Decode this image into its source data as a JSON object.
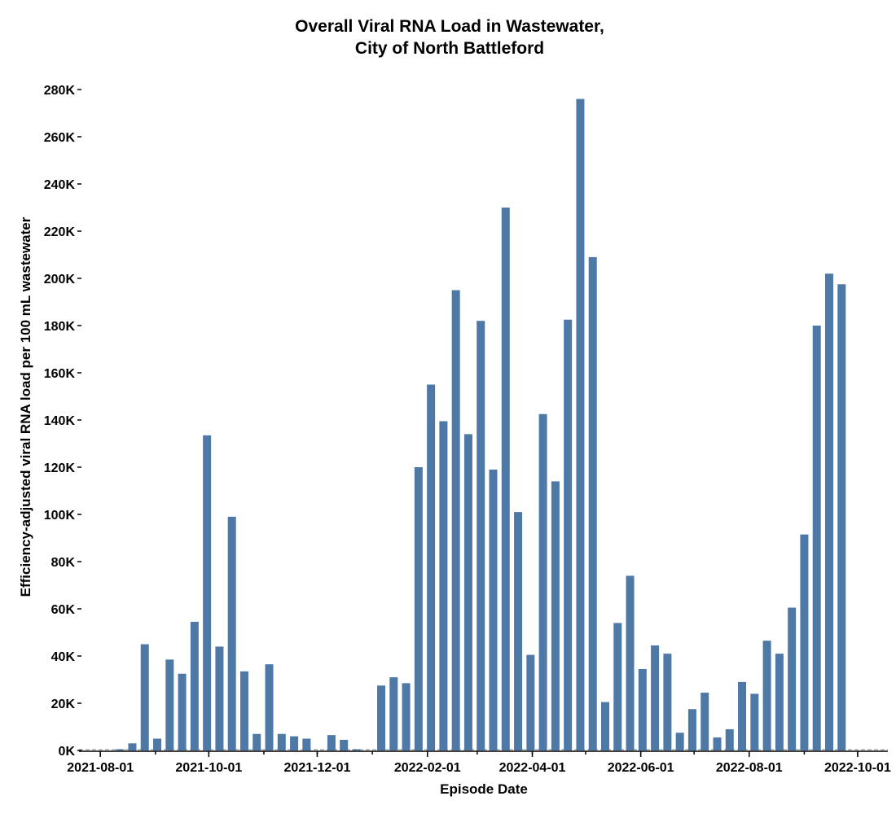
{
  "chart_data": {
    "type": "bar",
    "title": [
      "Overall Viral RNA Load in Wastewater,",
      "City of North Battleford"
    ],
    "xlabel": "Episode Date",
    "ylabel": "Efficiency-adjusted viral RNA load per 100 mL wastewater",
    "ylim": [
      0,
      280000
    ],
    "xlim": [
      "2021-07-20",
      "2022-10-18"
    ],
    "y_ticks": [
      0,
      20000,
      40000,
      60000,
      80000,
      100000,
      120000,
      140000,
      160000,
      180000,
      200000,
      220000,
      240000,
      260000,
      280000
    ],
    "y_tick_labels": [
      "0K",
      "20K",
      "40K",
      "60K",
      "80K",
      "100K",
      "120K",
      "140K",
      "160K",
      "180K",
      "200K",
      "220K",
      "240K",
      "260K",
      "280K"
    ],
    "x_ticks": [
      "2021-08-01",
      "2021-10-01",
      "2021-12-01",
      "2022-02-01",
      "2022-04-01",
      "2022-06-01",
      "2022-08-01",
      "2022-10-01"
    ],
    "bar_color": "#4e79a7",
    "grid": false,
    "zero_line": "dashed",
    "points": [
      [
        "2021-08-12",
        500
      ],
      [
        "2021-08-19",
        3000
      ],
      [
        "2021-08-26",
        45000
      ],
      [
        "2021-09-02",
        5000
      ],
      [
        "2021-09-09",
        38500
      ],
      [
        "2021-09-16",
        32500
      ],
      [
        "2021-09-23",
        54500
      ],
      [
        "2021-09-30",
        133500
      ],
      [
        "2021-10-07",
        44000
      ],
      [
        "2021-10-14",
        99000
      ],
      [
        "2021-10-21",
        33500
      ],
      [
        "2021-10-28",
        7000
      ],
      [
        "2021-11-04",
        36500
      ],
      [
        "2021-11-11",
        7000
      ],
      [
        "2021-11-18",
        6000
      ],
      [
        "2021-11-25",
        5000
      ],
      [
        "2021-12-09",
        6500
      ],
      [
        "2021-12-16",
        4500
      ],
      [
        "2021-12-23",
        500
      ],
      [
        "2022-01-06",
        27500
      ],
      [
        "2022-01-13",
        31000
      ],
      [
        "2022-01-20",
        28500
      ],
      [
        "2022-01-27",
        120000
      ],
      [
        "2022-02-03",
        155000
      ],
      [
        "2022-02-10",
        139500
      ],
      [
        "2022-02-17",
        195000
      ],
      [
        "2022-02-24",
        134000
      ],
      [
        "2022-03-03",
        182000
      ],
      [
        "2022-03-10",
        119000
      ],
      [
        "2022-03-17",
        230000
      ],
      [
        "2022-03-24",
        101000
      ],
      [
        "2022-03-31",
        40500
      ],
      [
        "2022-04-07",
        142500
      ],
      [
        "2022-04-14",
        114000
      ],
      [
        "2022-04-21",
        182500
      ],
      [
        "2022-04-28",
        276000
      ],
      [
        "2022-05-05",
        209000
      ],
      [
        "2022-05-12",
        20500
      ],
      [
        "2022-05-19",
        54000
      ],
      [
        "2022-05-26",
        74000
      ],
      [
        "2022-06-02",
        34500
      ],
      [
        "2022-06-09",
        44500
      ],
      [
        "2022-06-16",
        41000
      ],
      [
        "2022-06-23",
        7500
      ],
      [
        "2022-06-30",
        17500
      ],
      [
        "2022-07-07",
        24500
      ],
      [
        "2022-07-14",
        5500
      ],
      [
        "2022-07-21",
        9000
      ],
      [
        "2022-07-28",
        29000
      ],
      [
        "2022-08-04",
        24000
      ],
      [
        "2022-08-11",
        46500
      ],
      [
        "2022-08-18",
        41000
      ],
      [
        "2022-08-25",
        60500
      ],
      [
        "2022-09-01",
        91500
      ],
      [
        "2022-09-08",
        180000
      ],
      [
        "2022-09-15",
        202000
      ],
      [
        "2022-09-22",
        197500
      ]
    ]
  }
}
